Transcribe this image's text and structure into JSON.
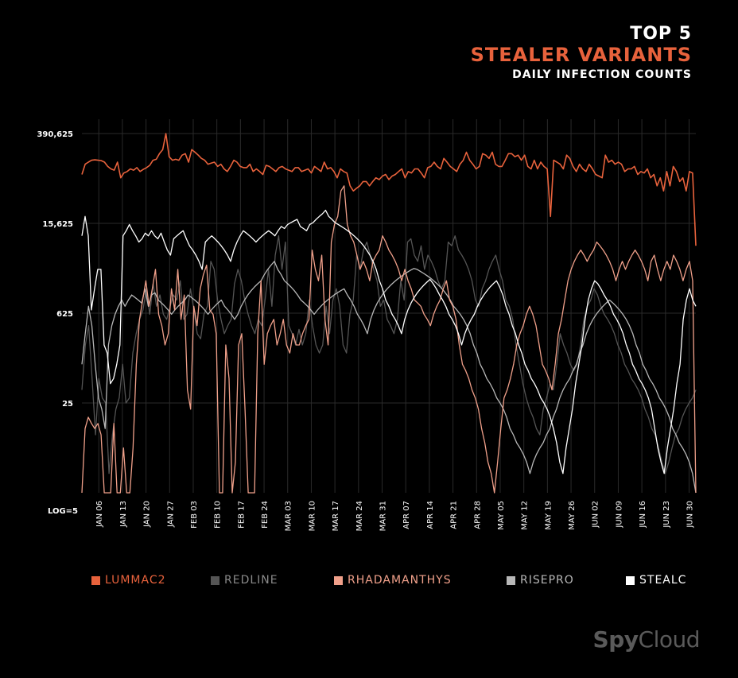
{
  "title_line1": "TOP 5",
  "title_line2": "STEALER VARIANTS",
  "title_line3": "DAILY INFECTION COUNTS",
  "colors": {
    "background": "#000000",
    "accent": "#e8623c",
    "grid": "#2a2a2a"
  },
  "logo": {
    "spy": "Spy",
    "cloud": "Cloud"
  },
  "chart_data": {
    "type": "line",
    "title": "",
    "xlabel": "",
    "ylabel": "",
    "y_scale": "log5",
    "y_axis_tick_labels": [
      "390,625",
      "15,625",
      "625",
      "25",
      "LOG=5"
    ],
    "y_ticks": [
      390625,
      15625,
      625,
      25
    ],
    "y_min": 1,
    "ylim_display": [
      1,
      390625
    ],
    "x_tick_labels": [
      "JAN 06",
      "JAN 13",
      "JAN 20",
      "JAN 27",
      "FEB 03",
      "FEB 10",
      "FEB 17",
      "FEB 24",
      "MAR 03",
      "MAR 10",
      "MAR 17",
      "MAR 24",
      "MAR 31",
      "APR 07",
      "APR 14",
      "APR 21",
      "APR 28",
      "MAY 05",
      "MAY 12",
      "MAY 19",
      "MAY 26",
      "JUN 02",
      "JUN 09",
      "JUN 16",
      "JUN 23",
      "JUN 30"
    ],
    "x_start_day": 0,
    "x_end_day": 182,
    "grid": true,
    "legend_position": "bottom",
    "series": [
      {
        "name": "LUMMAC2",
        "color": "#e8623c",
        "values": [
          90000,
          130000,
          140000,
          150000,
          152000,
          150000,
          148000,
          140000,
          120000,
          110000,
          105000,
          140000,
          80000,
          95000,
          100000,
          110000,
          105000,
          115000,
          100000,
          108000,
          115000,
          125000,
          150000,
          155000,
          190000,
          220000,
          390000,
          170000,
          150000,
          155000,
          150000,
          180000,
          190000,
          140000,
          220000,
          200000,
          180000,
          160000,
          150000,
          130000,
          135000,
          140000,
          120000,
          130000,
          110000,
          100000,
          120000,
          150000,
          140000,
          120000,
          115000,
          115000,
          130000,
          100000,
          110000,
          100000,
          90000,
          125000,
          120000,
          110000,
          100000,
          115000,
          120000,
          110000,
          105000,
          100000,
          115000,
          115000,
          100000,
          105000,
          110000,
          95000,
          120000,
          110000,
          100000,
          140000,
          110000,
          115000,
          100000,
          80000,
          110000,
          100000,
          95000,
          60000,
          50000,
          55000,
          60000,
          70000,
          70000,
          60000,
          70000,
          80000,
          75000,
          85000,
          90000,
          75000,
          85000,
          90000,
          100000,
          110000,
          80000,
          100000,
          95000,
          110000,
          110000,
          95000,
          80000,
          115000,
          120000,
          140000,
          120000,
          110000,
          160000,
          140000,
          120000,
          110000,
          100000,
          130000,
          150000,
          200000,
          150000,
          130000,
          110000,
          120000,
          190000,
          180000,
          160000,
          200000,
          130000,
          120000,
          120000,
          150000,
          190000,
          190000,
          170000,
          180000,
          150000,
          180000,
          120000,
          110000,
          150000,
          110000,
          140000,
          120000,
          110000,
          20000,
          150000,
          140000,
          130000,
          110000,
          180000,
          160000,
          120000,
          100000,
          130000,
          110000,
          100000,
          130000,
          110000,
          90000,
          85000,
          80000,
          180000,
          140000,
          150000,
          130000,
          140000,
          130000,
          100000,
          110000,
          110000,
          120000,
          90000,
          100000,
          95000,
          110000,
          80000,
          90000,
          60000,
          80000,
          50000,
          100000,
          60000,
          120000,
          100000,
          70000,
          80000,
          50000,
          100000,
          95000,
          7000
        ]
      },
      {
        "name": "REDLINE",
        "color": "#555555",
        "values": [
          40,
          200,
          400,
          60,
          8,
          60,
          30,
          25,
          2,
          8,
          20,
          30,
          100,
          25,
          30,
          150,
          300,
          500,
          700,
          1500,
          600,
          1800,
          800,
          1200,
          600,
          500,
          800,
          1200,
          1000,
          2000,
          500,
          600,
          1500,
          700,
          300,
          250,
          600,
          800,
          4000,
          3000,
          1000,
          500,
          300,
          400,
          500,
          1800,
          3000,
          2000,
          1000,
          600,
          400,
          300,
          500,
          400,
          1000,
          3000,
          800,
          5000,
          10000,
          3000,
          8000,
          400,
          300,
          200,
          350,
          200,
          300,
          1000,
          400,
          200,
          150,
          200,
          800,
          300,
          1000,
          1500,
          800,
          200,
          150,
          600,
          1000,
          5000,
          3000,
          6000,
          8000,
          5000,
          3000,
          2000,
          800,
          1000,
          500,
          400,
          300,
          500,
          2000,
          1000,
          8000,
          9000,
          5000,
          4000,
          7000,
          3000,
          5000,
          4000,
          3000,
          2000,
          1500,
          2000,
          8000,
          7000,
          10000,
          6000,
          5000,
          4000,
          3000,
          2000,
          1000,
          800,
          1500,
          2000,
          3000,
          4000,
          5000,
          3000,
          2000,
          1000,
          800,
          500,
          200,
          100,
          50,
          30,
          20,
          15,
          10,
          8,
          20,
          30,
          50,
          40,
          100,
          300,
          200,
          150,
          100,
          80,
          100,
          200,
          500,
          800,
          1000,
          1500,
          1200,
          800,
          600,
          500,
          400,
          300,
          200,
          150,
          100,
          80,
          60,
          50,
          40,
          30,
          20,
          15,
          10,
          8,
          5,
          3,
          2,
          3,
          5,
          8,
          10,
          15,
          20,
          25,
          30,
          40
        ]
      },
      {
        "name": "RHADAMANTHYS",
        "color": "#f0a08a",
        "values": [
          1,
          10,
          15,
          12,
          10,
          12,
          8,
          1,
          1,
          1,
          12,
          1,
          1,
          5,
          1,
          1,
          5,
          100,
          500,
          1000,
          2000,
          800,
          1500,
          3000,
          600,
          400,
          200,
          300,
          1500,
          700,
          3000,
          500,
          1200,
          40,
          20,
          800,
          400,
          1500,
          2500,
          3500,
          700,
          600,
          300,
          1,
          1,
          200,
          60,
          1,
          3,
          200,
          300,
          20,
          1,
          1,
          1,
          300,
          2000,
          100,
          300,
          400,
          500,
          200,
          300,
          500,
          200,
          150,
          300,
          200,
          200,
          300,
          400,
          500,
          6000,
          3000,
          2000,
          5000,
          500,
          200,
          8000,
          15000,
          20000,
          50000,
          60000,
          15000,
          10000,
          8000,
          5000,
          3000,
          4000,
          3000,
          2000,
          4000,
          5000,
          6000,
          10000,
          8000,
          6000,
          5000,
          4000,
          3000,
          2000,
          3000,
          2000,
          1500,
          1000,
          900,
          800,
          600,
          500,
          400,
          600,
          800,
          1000,
          1500,
          2000,
          1000,
          800,
          500,
          200,
          100,
          80,
          60,
          40,
          30,
          20,
          10,
          6,
          3,
          2,
          1,
          3,
          10,
          30,
          40,
          60,
          100,
          200,
          300,
          400,
          600,
          800,
          600,
          400,
          200,
          100,
          80,
          60,
          40,
          100,
          300,
          500,
          1000,
          2000,
          3000,
          4000,
          5000,
          6000,
          5000,
          4000,
          5000,
          6000,
          8000,
          7000,
          6000,
          5000,
          4000,
          3000,
          2000,
          3000,
          4000,
          3000,
          4000,
          5000,
          6000,
          5000,
          4000,
          3000,
          2000,
          4000,
          5000,
          3000,
          2000,
          3000,
          4000,
          3000,
          5000,
          4000,
          3000,
          2000,
          3000,
          4000,
          2000,
          1
        ]
      },
      {
        "name": "RISEPRO",
        "color": "#b8b8b8",
        "values": [
          100,
          300,
          800,
          400,
          100,
          30,
          20,
          10,
          200,
          400,
          600,
          800,
          1000,
          800,
          1000,
          1200,
          1100,
          1000,
          900,
          1500,
          800,
          1200,
          1300,
          1000,
          900,
          800,
          700,
          600,
          700,
          800,
          900,
          1000,
          1200,
          1100,
          1000,
          900,
          800,
          700,
          600,
          700,
          800,
          900,
          1000,
          800,
          700,
          600,
          500,
          600,
          800,
          1000,
          1200,
          1400,
          1600,
          1800,
          2000,
          2500,
          3000,
          3500,
          4000,
          3000,
          2500,
          2000,
          1800,
          1600,
          1400,
          1200,
          1000,
          900,
          800,
          700,
          600,
          700,
          800,
          900,
          1000,
          1100,
          1200,
          1300,
          1400,
          1500,
          1200,
          1000,
          800,
          600,
          500,
          400,
          300,
          500,
          700,
          900,
          1100,
          1300,
          1500,
          1700,
          1900,
          2100,
          2300,
          2500,
          2700,
          2900,
          3100,
          3000,
          2800,
          2600,
          2400,
          2200,
          2000,
          1800,
          1600,
          1400,
          1200,
          1000,
          800,
          700,
          600,
          500,
          400,
          300,
          200,
          150,
          100,
          80,
          60,
          50,
          40,
          30,
          25,
          20,
          15,
          10,
          8,
          6,
          5,
          4,
          3,
          2,
          3,
          4,
          5,
          6,
          8,
          10,
          15,
          20,
          30,
          40,
          50,
          60,
          80,
          100,
          150,
          200,
          300,
          400,
          500,
          600,
          700,
          800,
          900,
          1000,
          900,
          800,
          700,
          600,
          500,
          400,
          300,
          200,
          150,
          100,
          80,
          60,
          50,
          40,
          30,
          25,
          20,
          15,
          10,
          8,
          6,
          5,
          4,
          3,
          2,
          1
        ]
      },
      {
        "name": "STEALC",
        "color": "#ffffff",
        "values": [
          10000,
          20000,
          10000,
          700,
          1500,
          3000,
          3000,
          200,
          150,
          50,
          60,
          100,
          200,
          10000,
          12000,
          15000,
          12000,
          10000,
          8000,
          9000,
          11000,
          10000,
          12000,
          10000,
          9000,
          11000,
          8000,
          6000,
          5000,
          9000,
          10000,
          11000,
          12000,
          9000,
          7000,
          6000,
          5000,
          4000,
          3000,
          8000,
          9000,
          10000,
          9000,
          8000,
          7000,
          6000,
          5000,
          4000,
          6000,
          8000,
          10000,
          12000,
          11000,
          10000,
          9000,
          8000,
          9000,
          10000,
          11000,
          12000,
          11000,
          10000,
          12000,
          14000,
          13000,
          15000,
          16000,
          17000,
          18000,
          14000,
          13000,
          12000,
          15000,
          16000,
          18000,
          20000,
          22000,
          25000,
          20000,
          18000,
          16000,
          15000,
          14000,
          13000,
          12000,
          11000,
          10000,
          9000,
          8000,
          7000,
          6000,
          5000,
          4000,
          3000,
          2000,
          1500,
          1000,
          800,
          600,
          500,
          400,
          300,
          500,
          700,
          900,
          1100,
          1300,
          1500,
          1700,
          1900,
          2100,
          1800,
          1500,
          1200,
          1000,
          800,
          600,
          500,
          400,
          300,
          200,
          300,
          400,
          500,
          600,
          800,
          1000,
          1200,
          1400,
          1600,
          1800,
          2000,
          1600,
          1200,
          800,
          600,
          400,
          300,
          200,
          150,
          100,
          80,
          60,
          50,
          40,
          30,
          25,
          20,
          15,
          10,
          6,
          3,
          2,
          5,
          10,
          20,
          50,
          100,
          200,
          500,
          1000,
          1500,
          2000,
          1800,
          1500,
          1200,
          1000,
          800,
          600,
          500,
          400,
          300,
          200,
          150,
          100,
          80,
          60,
          50,
          40,
          30,
          20,
          10,
          5,
          3,
          2,
          5,
          10,
          20,
          50,
          100,
          500,
          1000,
          1500,
          1000,
          800
        ]
      }
    ]
  }
}
